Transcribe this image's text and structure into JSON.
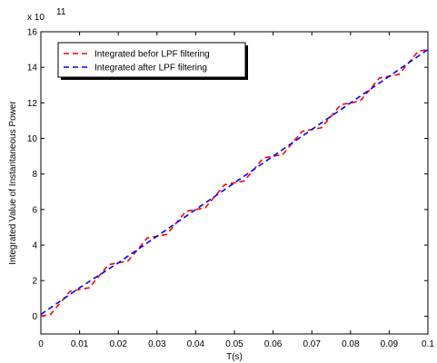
{
  "chart_data": {
    "type": "line",
    "xlabel": "T(s)",
    "ylabel": "Integrated Value of Instantaneous Power",
    "y_multiplier": "x 10",
    "y_multiplier_exponent": "11",
    "xlim": [
      0,
      0.1
    ],
    "ylim": [
      -1,
      16
    ],
    "x_ticks": [
      0,
      0.01,
      0.02,
      0.03,
      0.04,
      0.05,
      0.06,
      0.07,
      0.08,
      0.09,
      0.1
    ],
    "x_tick_labels": [
      "0",
      "0.01",
      "0.02",
      "0.03",
      "0.04",
      "0.05",
      "0.06",
      "0.07",
      "0.08",
      "0.09",
      "0.1"
    ],
    "y_ticks": [
      0,
      2,
      4,
      6,
      8,
      10,
      12,
      14,
      16
    ],
    "y_tick_labels": [
      "0",
      "2",
      "4",
      "6",
      "8",
      "10",
      "12",
      "14",
      "16"
    ],
    "grid": false,
    "legend_position": "top-left",
    "series": [
      {
        "name": "Integrated befor LPF filtering",
        "color": "#ff0000",
        "x": [
          0,
          0.0025,
          0.005,
          0.0075,
          0.01,
          0.0125,
          0.015,
          0.0175,
          0.02,
          0.0225,
          0.025,
          0.0275,
          0.03,
          0.0325,
          0.035,
          0.0375,
          0.04,
          0.0425,
          0.045,
          0.0475,
          0.05,
          0.0525,
          0.055,
          0.0575,
          0.06,
          0.0625,
          0.065,
          0.0675,
          0.07,
          0.0725,
          0.075,
          0.0775,
          0.08,
          0.0825,
          0.085,
          0.0875,
          0.09,
          0.0925,
          0.095,
          0.0975,
          0.1
        ],
        "y": [
          0,
          0.1,
          0.75,
          1.4,
          1.5,
          1.6,
          2.25,
          2.9,
          3.0,
          3.1,
          3.75,
          4.4,
          4.5,
          4.6,
          5.25,
          5.9,
          6.0,
          6.1,
          6.75,
          7.4,
          7.5,
          7.6,
          8.25,
          8.9,
          9.0,
          9.1,
          9.75,
          10.4,
          10.5,
          10.6,
          11.25,
          11.9,
          12.0,
          12.1,
          12.75,
          13.4,
          13.5,
          13.6,
          14.25,
          14.9,
          15.0
        ]
      },
      {
        "name": "Integrated after LPF filtering",
        "color": "#0000ff",
        "x": [
          0,
          0.01,
          0.02,
          0.03,
          0.04,
          0.05,
          0.06,
          0.07,
          0.08,
          0.09,
          0.1
        ],
        "y": [
          0.1,
          1.6,
          3.0,
          4.5,
          6.0,
          7.5,
          9.0,
          10.5,
          12.0,
          13.5,
          15.0
        ]
      }
    ]
  }
}
